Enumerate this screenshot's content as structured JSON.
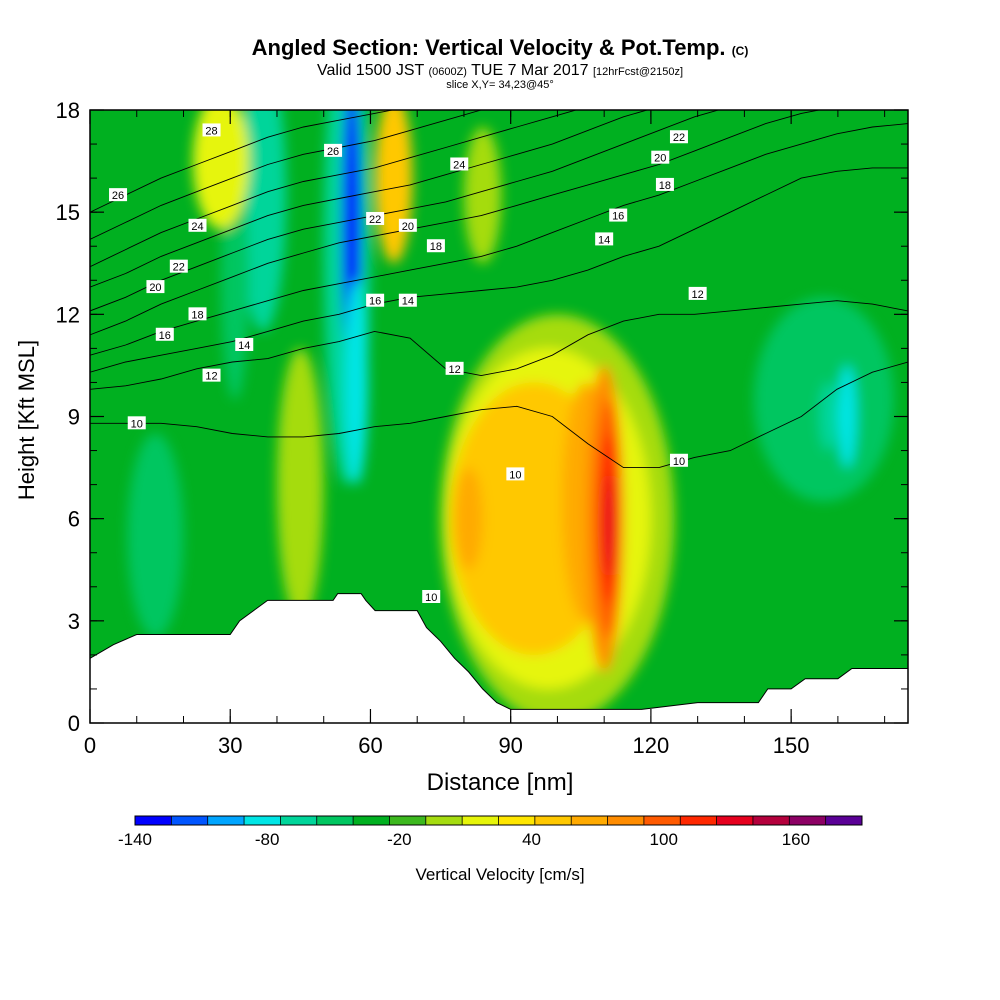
{
  "title": {
    "main": "Angled Section: Vertical Velocity & Pot.Temp.",
    "main_unit": "(C)",
    "valid_prefix": "Valid 1500 JST",
    "utc": "(0600Z)",
    "valid_date": "TUE 7 Mar 2017",
    "forecast": "[12hrFcst@2150z]",
    "slice": "slice X,Y= 34,23@45°"
  },
  "chart_data": {
    "type": "heatmap",
    "xlabel": "Distance [nm]",
    "ylabel": "Height [Kft MSL]",
    "xlim": [
      0,
      175
    ],
    "ylim": [
      0,
      18
    ],
    "x_ticks": [
      0,
      30,
      60,
      90,
      120,
      150
    ],
    "y_ticks": [
      0,
      3,
      6,
      9,
      12,
      15,
      18
    ],
    "colorbar": {
      "label": "Vertical Velocity [cm/s]",
      "min": -140,
      "max": 190,
      "step": 20,
      "tick_labels": [
        -140,
        -80,
        -20,
        40,
        100,
        160
      ],
      "colors": [
        "#0000ff",
        "#0055ff",
        "#00a5ff",
        "#00e5e5",
        "#00d59a",
        "#00c660",
        "#00b020",
        "#3cb81e",
        "#a5dc10",
        "#e6f50a",
        "#ffe600",
        "#ffc800",
        "#ffaa00",
        "#ff8c00",
        "#ff5a00",
        "#ff2800",
        "#e6001e",
        "#b4003c",
        "#8c0064",
        "#5a0096"
      ]
    },
    "terrain_kft": [
      [
        0,
        1.9
      ],
      [
        5,
        2.3
      ],
      [
        10,
        2.6
      ],
      [
        30,
        2.6
      ],
      [
        32,
        3.0
      ],
      [
        35,
        3.3
      ],
      [
        38,
        3.6
      ],
      [
        52,
        3.6
      ],
      [
        53,
        3.8
      ],
      [
        58,
        3.8
      ],
      [
        59,
        3.6
      ],
      [
        61,
        3.3
      ],
      [
        70,
        3.3
      ],
      [
        72,
        2.8
      ],
      [
        75,
        2.4
      ],
      [
        78,
        1.9
      ],
      [
        81,
        1.5
      ],
      [
        84,
        1.0
      ],
      [
        87,
        0.6
      ],
      [
        90,
        0.4
      ],
      [
        118,
        0.4
      ],
      [
        130,
        0.6
      ],
      [
        143,
        0.6
      ],
      [
        145,
        1.0
      ],
      [
        150,
        1.0
      ],
      [
        153,
        1.3
      ],
      [
        160,
        1.3
      ],
      [
        163,
        1.6
      ],
      [
        175,
        1.6
      ]
    ],
    "velocity_cells": [
      {
        "x": 37,
        "y": 15.5,
        "rx": 5,
        "ry": 4,
        "value": -60
      },
      {
        "x": 31,
        "y": 13.0,
        "rx": 3,
        "ry": 3.5,
        "value": -40
      },
      {
        "x": 55,
        "y": 14.0,
        "rx": 5,
        "ry": 7,
        "value": -60
      },
      {
        "x": 56,
        "y": 14.5,
        "rx": 2,
        "ry": 4.5,
        "value": -130
      },
      {
        "x": 57,
        "y": 10.0,
        "rx": 2.5,
        "ry": 3,
        "value": -80
      },
      {
        "x": 28,
        "y": 16.5,
        "rx": 6,
        "ry": 2,
        "value": 40
      },
      {
        "x": 65,
        "y": 16.0,
        "rx": 4,
        "ry": 2.5,
        "value": 80
      },
      {
        "x": 84,
        "y": 15.5,
        "rx": 4,
        "ry": 2,
        "value": 20
      },
      {
        "x": 100,
        "y": 6.0,
        "rx": 25,
        "ry": 6,
        "value": 20
      },
      {
        "x": 98,
        "y": 6.0,
        "rx": 22,
        "ry": 5,
        "value": 40
      },
      {
        "x": 95,
        "y": 6.0,
        "rx": 18,
        "ry": 4,
        "value": 80
      },
      {
        "x": 81,
        "y": 6.0,
        "rx": 3,
        "ry": 1.5,
        "value": 100
      },
      {
        "x": 106,
        "y": 6.5,
        "rx": 5,
        "ry": 3.5,
        "value": 100
      },
      {
        "x": 110,
        "y": 6.0,
        "rx": 4,
        "ry": 4.5,
        "value": 120
      },
      {
        "x": 111,
        "y": 6.0,
        "rx": 3,
        "ry": 3.5,
        "value": 140
      },
      {
        "x": 111,
        "y": 6.0,
        "rx": 2,
        "ry": 2.5,
        "value": 160
      },
      {
        "x": 111,
        "y": 5.8,
        "rx": 1.2,
        "ry": 1.5,
        "value": 180
      },
      {
        "x": 45,
        "y": 7.0,
        "rx": 5,
        "ry": 4,
        "value": 20
      },
      {
        "x": 14,
        "y": 5.5,
        "rx": 6,
        "ry": 3,
        "value": -40
      },
      {
        "x": 157,
        "y": 9.5,
        "rx": 15,
        "ry": 3,
        "value": -40
      },
      {
        "x": 158,
        "y": 9.0,
        "rx": 2,
        "ry": 1,
        "value": -60
      },
      {
        "x": 162,
        "y": 9.0,
        "rx": 2,
        "ry": 1.5,
        "value": -70
      }
    ],
    "theta_contours": [
      {
        "label": "10",
        "y_kft": [
          8.8,
          8.8,
          8.8,
          8.7,
          8.5,
          8.4,
          8.4,
          8.5,
          8.7,
          8.8,
          9.0,
          9.2,
          9.3,
          9.0,
          8.2,
          7.5,
          7.5,
          7.8,
          8.0,
          8.5,
          9.0,
          9.8,
          10.3,
          10.6
        ],
        "labels_at": [
          [
            10,
            8.8
          ],
          [
            73,
            3.7
          ],
          [
            91,
            7.3
          ],
          [
            126,
            7.7
          ]
        ]
      },
      {
        "label": "12",
        "y_kft": [
          9.8,
          9.9,
          10.1,
          10.4,
          10.6,
          10.7,
          11.0,
          11.2,
          11.5,
          11.3,
          10.4,
          10.2,
          10.4,
          10.8,
          11.4,
          11.8,
          12.0,
          12.0,
          12.1,
          12.2,
          12.3,
          12.4,
          12.3,
          12.1
        ],
        "labels_at": [
          [
            26,
            10.2
          ],
          [
            78,
            10.4
          ],
          [
            130,
            12.6
          ]
        ]
      },
      {
        "label": "14",
        "y_kft": [
          10.3,
          10.6,
          10.8,
          11.0,
          11.2,
          11.5,
          11.8,
          12.0,
          12.3,
          12.5,
          12.6,
          12.7,
          12.8,
          13.0,
          13.3,
          13.7,
          14.0,
          14.5,
          15.0,
          15.5,
          16.0,
          16.2,
          16.3,
          16.3
        ],
        "labels_at": [
          [
            33,
            11.1
          ],
          [
            68,
            12.4
          ],
          [
            110,
            14.2
          ]
        ]
      },
      {
        "label": "16",
        "y_kft": [
          10.8,
          11.1,
          11.5,
          11.8,
          12.1,
          12.4,
          12.7,
          12.9,
          13.1,
          13.3,
          13.5,
          13.7,
          14.0,
          14.4,
          14.8,
          15.2,
          15.5,
          15.9,
          16.3,
          16.7,
          17.0,
          17.3,
          17.5,
          17.6
        ],
        "labels_at": [
          [
            16,
            11.4
          ],
          [
            61,
            12.4
          ],
          [
            113,
            14.9
          ]
        ]
      },
      {
        "label": "18",
        "y_kft": [
          11.4,
          11.8,
          12.3,
          12.7,
          13.1,
          13.5,
          13.8,
          14.1,
          14.3,
          14.5,
          14.7,
          14.9,
          15.2,
          15.5,
          15.8,
          16.1,
          16.4,
          16.8,
          17.2,
          17.6,
          17.9,
          18.1,
          18.2,
          18.2
        ],
        "labels_at": [
          [
            23,
            12.0
          ],
          [
            74,
            14.0
          ],
          [
            123,
            15.8
          ]
        ]
      },
      {
        "label": "20",
        "y_kft": [
          12.1,
          12.5,
          13.0,
          13.4,
          13.8,
          14.2,
          14.5,
          14.7,
          14.9,
          15.1,
          15.3,
          15.6,
          15.9,
          16.2,
          16.6,
          17.0,
          17.4,
          17.8,
          18.1,
          18.3,
          18.4,
          18.4,
          18.4,
          18.4
        ],
        "labels_at": [
          [
            14,
            12.8
          ],
          [
            68,
            14.6
          ],
          [
            122,
            16.6
          ]
        ]
      },
      {
        "label": "22",
        "y_kft": [
          12.8,
          13.2,
          13.7,
          14.1,
          14.5,
          14.9,
          15.2,
          15.4,
          15.6,
          15.8,
          16.1,
          16.4,
          16.7,
          17.0,
          17.4,
          17.8,
          18.1,
          18.3,
          18.5,
          18.6,
          18.6,
          18.6,
          18.6,
          18.6
        ],
        "labels_at": [
          [
            19,
            13.4
          ],
          [
            61,
            14.8
          ],
          [
            126,
            17.2
          ]
        ]
      },
      {
        "label": "24",
        "y_kft": [
          13.4,
          13.9,
          14.4,
          14.8,
          15.2,
          15.6,
          15.9,
          16.1,
          16.3,
          16.6,
          16.9,
          17.2,
          17.5,
          17.8,
          18.1,
          18.3,
          18.5,
          18.6,
          18.7,
          18.7,
          18.7,
          18.7,
          18.7,
          18.7
        ],
        "labels_at": [
          [
            23,
            14.6
          ],
          [
            79,
            16.4
          ]
        ]
      },
      {
        "label": "26",
        "y_kft": [
          14.2,
          14.7,
          15.2,
          15.6,
          16.0,
          16.4,
          16.7,
          16.9,
          17.1,
          17.4,
          17.7,
          18.0,
          18.3,
          18.5,
          18.7,
          18.8,
          18.8,
          18.8,
          18.8,
          18.8,
          18.8,
          18.8,
          18.8,
          18.8
        ],
        "labels_at": [
          [
            6,
            15.5
          ],
          [
            52,
            16.8
          ]
        ]
      },
      {
        "label": "28",
        "y_kft": [
          15.0,
          15.5,
          16.0,
          16.4,
          16.8,
          17.2,
          17.5,
          17.7,
          17.9,
          18.1,
          18.4,
          18.6,
          18.8,
          18.9,
          18.9,
          18.9,
          18.9,
          18.9,
          18.9,
          18.9,
          18.9,
          18.9,
          18.9,
          18.9
        ],
        "labels_at": [
          [
            26,
            17.4
          ]
        ]
      }
    ]
  }
}
